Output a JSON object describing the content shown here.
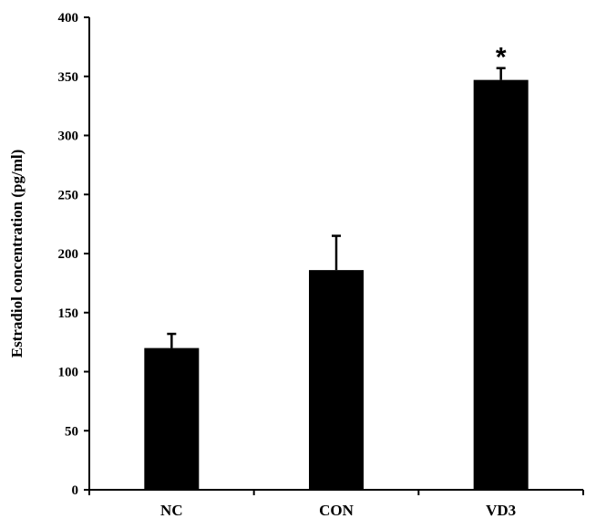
{
  "chart_data": {
    "type": "bar",
    "categories": [
      "NC",
      "CON",
      "VD3"
    ],
    "values": [
      120,
      186,
      347
    ],
    "error_upper": [
      12,
      29,
      10
    ],
    "ylabel": "Estradiol concentration (pg/ml)",
    "xlabel": "",
    "ylim": [
      0,
      400
    ],
    "yticks": [
      0,
      50,
      100,
      150,
      200,
      250,
      300,
      350,
      400
    ],
    "annotations": [
      {
        "category": "VD3",
        "text": "*"
      }
    ],
    "grid": false,
    "bar_color": "#000000"
  }
}
